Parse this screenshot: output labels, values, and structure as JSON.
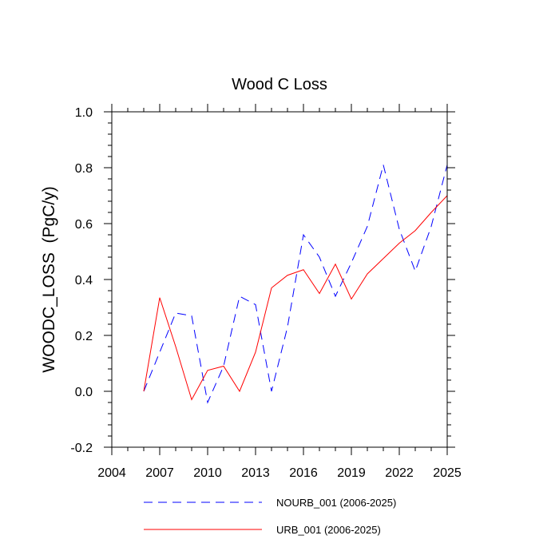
{
  "chart_data": {
    "type": "line",
    "title": "Wood C Loss",
    "xlabel": "",
    "ylabel": "WOODC_LOSS  (PgC/y)",
    "xlim": [
      2004,
      2025
    ],
    "ylim": [
      -0.2,
      1.0
    ],
    "x_ticks": [
      2004,
      2007,
      2010,
      2013,
      2016,
      2019,
      2022,
      2025
    ],
    "y_ticks": [
      -0.2,
      0.0,
      0.2,
      0.4,
      0.6,
      0.8,
      1.0
    ],
    "y_tick_labels": [
      "-0.2",
      "0.0",
      "0.2",
      "0.4",
      "0.6",
      "0.8",
      "1.0"
    ],
    "x": [
      2006,
      2007,
      2008,
      2009,
      2010,
      2011,
      2012,
      2013,
      2014,
      2015,
      2016,
      2017,
      2018,
      2019,
      2020,
      2021,
      2022,
      2023,
      2024,
      2025
    ],
    "series": [
      {
        "name": "NOURB_001 (2006-2025)",
        "color": "#0000ff",
        "dash": "dashed",
        "values": [
          0.0,
          0.14,
          0.28,
          0.27,
          -0.04,
          0.09,
          0.34,
          0.31,
          0.0,
          0.23,
          0.56,
          0.48,
          0.34,
          0.46,
          0.59,
          0.81,
          0.58,
          0.43,
          0.59,
          0.81
        ]
      },
      {
        "name": "URB_001 (2006-2025)",
        "color": "#ff0000",
        "dash": "solid",
        "values": [
          0.0,
          0.335,
          0.16,
          -0.03,
          0.075,
          0.09,
          0.0,
          0.14,
          0.37,
          0.415,
          0.435,
          0.35,
          0.455,
          0.33,
          0.42,
          0.475,
          0.53,
          0.575,
          0.64,
          0.7
        ]
      }
    ],
    "legend_position": "bottom"
  }
}
